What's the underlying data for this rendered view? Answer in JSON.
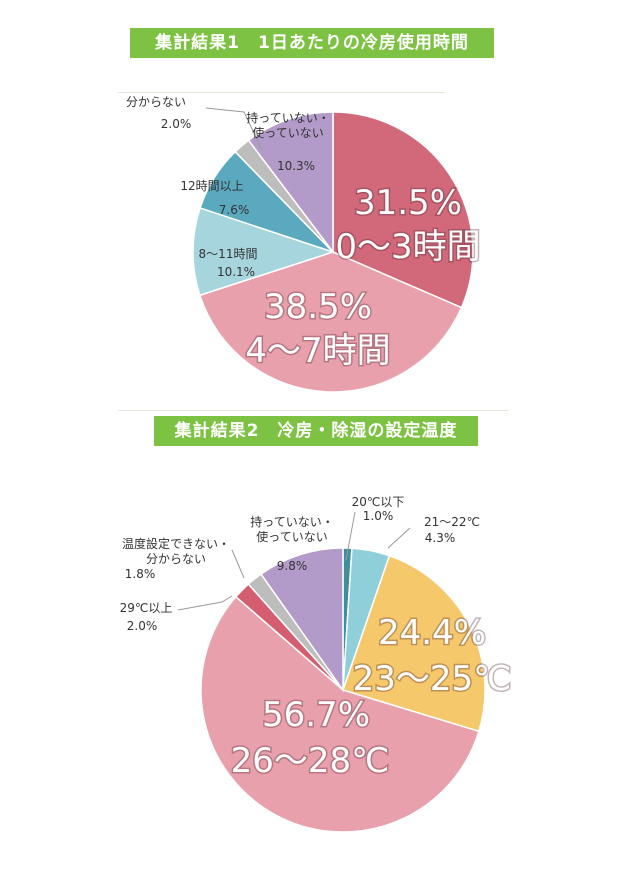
{
  "chart_data": [
    {
      "type": "pie",
      "title": "集計結果1　1日あたりの冷房使用時間",
      "slices": [
        {
          "name": "0〜3時間",
          "value": 31.5,
          "label": "31.5%",
          "color": "#d2697a"
        },
        {
          "name": "4〜7時間",
          "value": 38.5,
          "label": "38.5%",
          "color": "#e9a0ad"
        },
        {
          "name": "8〜11時間",
          "value": 10.1,
          "label": "10.1%",
          "color": "#a6d5de"
        },
        {
          "name": "12時間以上",
          "value": 7.6,
          "label": "7.6%",
          "color": "#5aa9bf"
        },
        {
          "name": "分からない",
          "value": 2.0,
          "label": "2.0%",
          "color": "#bdbdbd"
        },
        {
          "name": "持っていない・使っていない",
          "name_lines": [
            "持っていない・",
            "使っていない"
          ],
          "value": 10.3,
          "label": "10.3%",
          "color": "#b39bc9"
        }
      ]
    },
    {
      "type": "pie",
      "title": "集計結果2　冷房・除湿の設定温度",
      "slices": [
        {
          "name": "20℃以下",
          "value": 1.0,
          "label": "1.0%",
          "color": "#3f8e9a"
        },
        {
          "name": "21〜22℃",
          "value": 4.3,
          "label": "4.3%",
          "color": "#8fcfda"
        },
        {
          "name": "23〜25℃",
          "value": 24.4,
          "label": "24.4%",
          "color": "#f5c86c"
        },
        {
          "name": "26〜28℃",
          "value": 56.7,
          "label": "56.7%",
          "color": "#e9a0ad"
        },
        {
          "name": "29℃以上",
          "value": 2.0,
          "label": "2.0%",
          "color": "#d45e6f"
        },
        {
          "name": "温度設定できない・分からない",
          "name_lines": [
            "温度設定できない・",
            "分からない"
          ],
          "value": 1.8,
          "label": "1.8%",
          "color": "#bdbdbd"
        },
        {
          "name": "持っていない・使っていない",
          "name_lines": [
            "持っていない・",
            "使っていない"
          ],
          "value": 9.8,
          "label": "9.8%",
          "color": "#b39bc9"
        }
      ]
    }
  ]
}
